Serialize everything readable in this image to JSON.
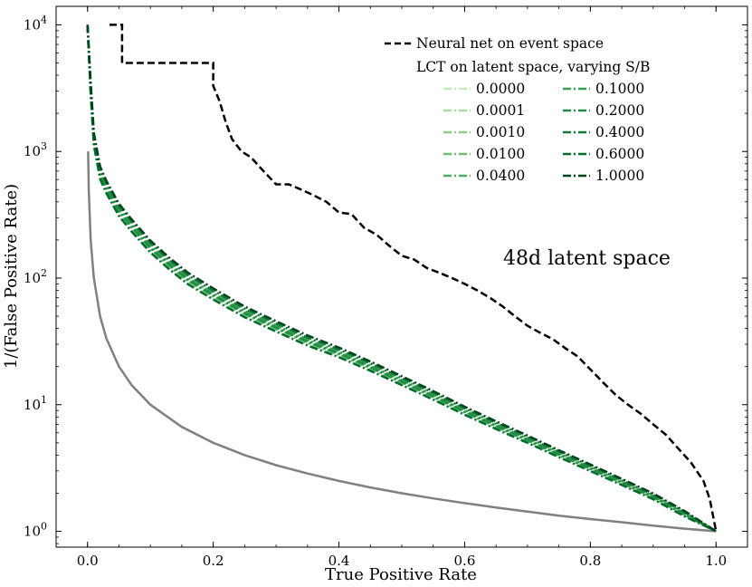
{
  "chart_data": {
    "type": "line",
    "xlabel": "True Positive Rate",
    "ylabel": "1/(False Positive Rate)",
    "xlim": [
      -0.05,
      1.05
    ],
    "ylim": [
      0.75,
      14000
    ],
    "yscale": "log",
    "xticks": [
      0.0,
      0.2,
      0.4,
      0.6,
      0.8,
      1.0
    ],
    "xtick_labels": [
      "0.0",
      "0.2",
      "0.4",
      "0.6",
      "0.8",
      "1.0"
    ],
    "yticks": [
      1,
      10,
      100,
      1000,
      10000
    ],
    "ytick_labels": [
      {
        "base": "10",
        "exp": "0"
      },
      {
        "base": "10",
        "exp": "1"
      },
      {
        "base": "10",
        "exp": "2"
      },
      {
        "base": "10",
        "exp": "3"
      },
      {
        "base": "10",
        "exp": "4"
      }
    ],
    "annotation": "48d latent space",
    "legend_placement": "top-right",
    "legend_title": "LCT on latent space, varying S/B",
    "nn_series": {
      "name": "Neural net on event space",
      "color": "#000000",
      "x": [
        0.035,
        0.055,
        0.055,
        0.2,
        0.2,
        0.21,
        0.22,
        0.23,
        0.245,
        0.26,
        0.28,
        0.3,
        0.32,
        0.34,
        0.36,
        0.38,
        0.4,
        0.42,
        0.44,
        0.46,
        0.48,
        0.5,
        0.52,
        0.54,
        0.56,
        0.58,
        0.6,
        0.62,
        0.64,
        0.66,
        0.68,
        0.7,
        0.72,
        0.74,
        0.76,
        0.78,
        0.8,
        0.82,
        0.84,
        0.86,
        0.88,
        0.9,
        0.92,
        0.94,
        0.96,
        0.98,
        0.99,
        1.0
      ],
      "y": [
        10000,
        10000,
        5000,
        5000,
        3300,
        2500,
        1700,
        1250,
        1000,
        900,
        700,
        550,
        550,
        500,
        450,
        400,
        330,
        320,
        250,
        220,
        180,
        150,
        140,
        120,
        110,
        100,
        90,
        80,
        70,
        60,
        50,
        42,
        37,
        33,
        28,
        24,
        19,
        15,
        12,
        10,
        8.5,
        7,
        5.8,
        4.5,
        3.5,
        2.5,
        1.8,
        1.0
      ]
    },
    "baseline_series": {
      "color": "#808080",
      "x": [
        0.001,
        0.002,
        0.005,
        0.01,
        0.02,
        0.03,
        0.05,
        0.07,
        0.1,
        0.15,
        0.2,
        0.25,
        0.3,
        0.35,
        0.4,
        0.45,
        0.5,
        0.55,
        0.6,
        0.65,
        0.7,
        0.75,
        0.8,
        0.85,
        0.9,
        0.95,
        1.0
      ],
      "y": [
        1000,
        500,
        200,
        100,
        50,
        33.3,
        20,
        14.3,
        10,
        6.67,
        5,
        4,
        3.33,
        2.86,
        2.5,
        2.22,
        2,
        1.82,
        1.67,
        1.54,
        1.43,
        1.33,
        1.25,
        1.18,
        1.11,
        1.05,
        1.0
      ]
    },
    "lct_base": {
      "x": [
        0.0,
        0.005,
        0.01,
        0.02,
        0.03,
        0.05,
        0.07,
        0.1,
        0.13,
        0.16,
        0.2,
        0.25,
        0.3,
        0.35,
        0.4,
        0.45,
        0.5,
        0.55,
        0.6,
        0.65,
        0.7,
        0.75,
        0.8,
        0.85,
        0.9,
        0.95,
        1.0
      ],
      "y": [
        10000,
        3000,
        1200,
        650,
        500,
        330,
        250,
        170,
        125,
        95,
        72,
        52,
        40,
        31,
        25,
        19.5,
        15,
        11.5,
        8.7,
        6.7,
        5.2,
        4.0,
        3.1,
        2.4,
        1.85,
        1.35,
        1.0
      ]
    },
    "lct_series": [
      {
        "name": "0.0000",
        "color": "#c7e9c0",
        "dy": 0.0
      },
      {
        "name": "0.0001",
        "color": "#a9dca3",
        "dy": 0.01
      },
      {
        "name": "0.0010",
        "color": "#8bce87",
        "dy": -0.01
      },
      {
        "name": "0.0100",
        "color": "#6cbd6e",
        "dy": 0.02
      },
      {
        "name": "0.0400",
        "color": "#4daf62",
        "dy": 0.0
      },
      {
        "name": "0.1000",
        "color": "#37a055",
        "dy": 0.03
      },
      {
        "name": "0.2000",
        "color": "#238b45",
        "dy": 0.01
      },
      {
        "name": "0.4000",
        "color": "#127a38",
        "dy": 0.05
      },
      {
        "name": "0.6000",
        "color": "#006d2c",
        "dy": -0.03
      },
      {
        "name": "1.0000",
        "color": "#00441b",
        "dy": 0.07
      }
    ]
  }
}
